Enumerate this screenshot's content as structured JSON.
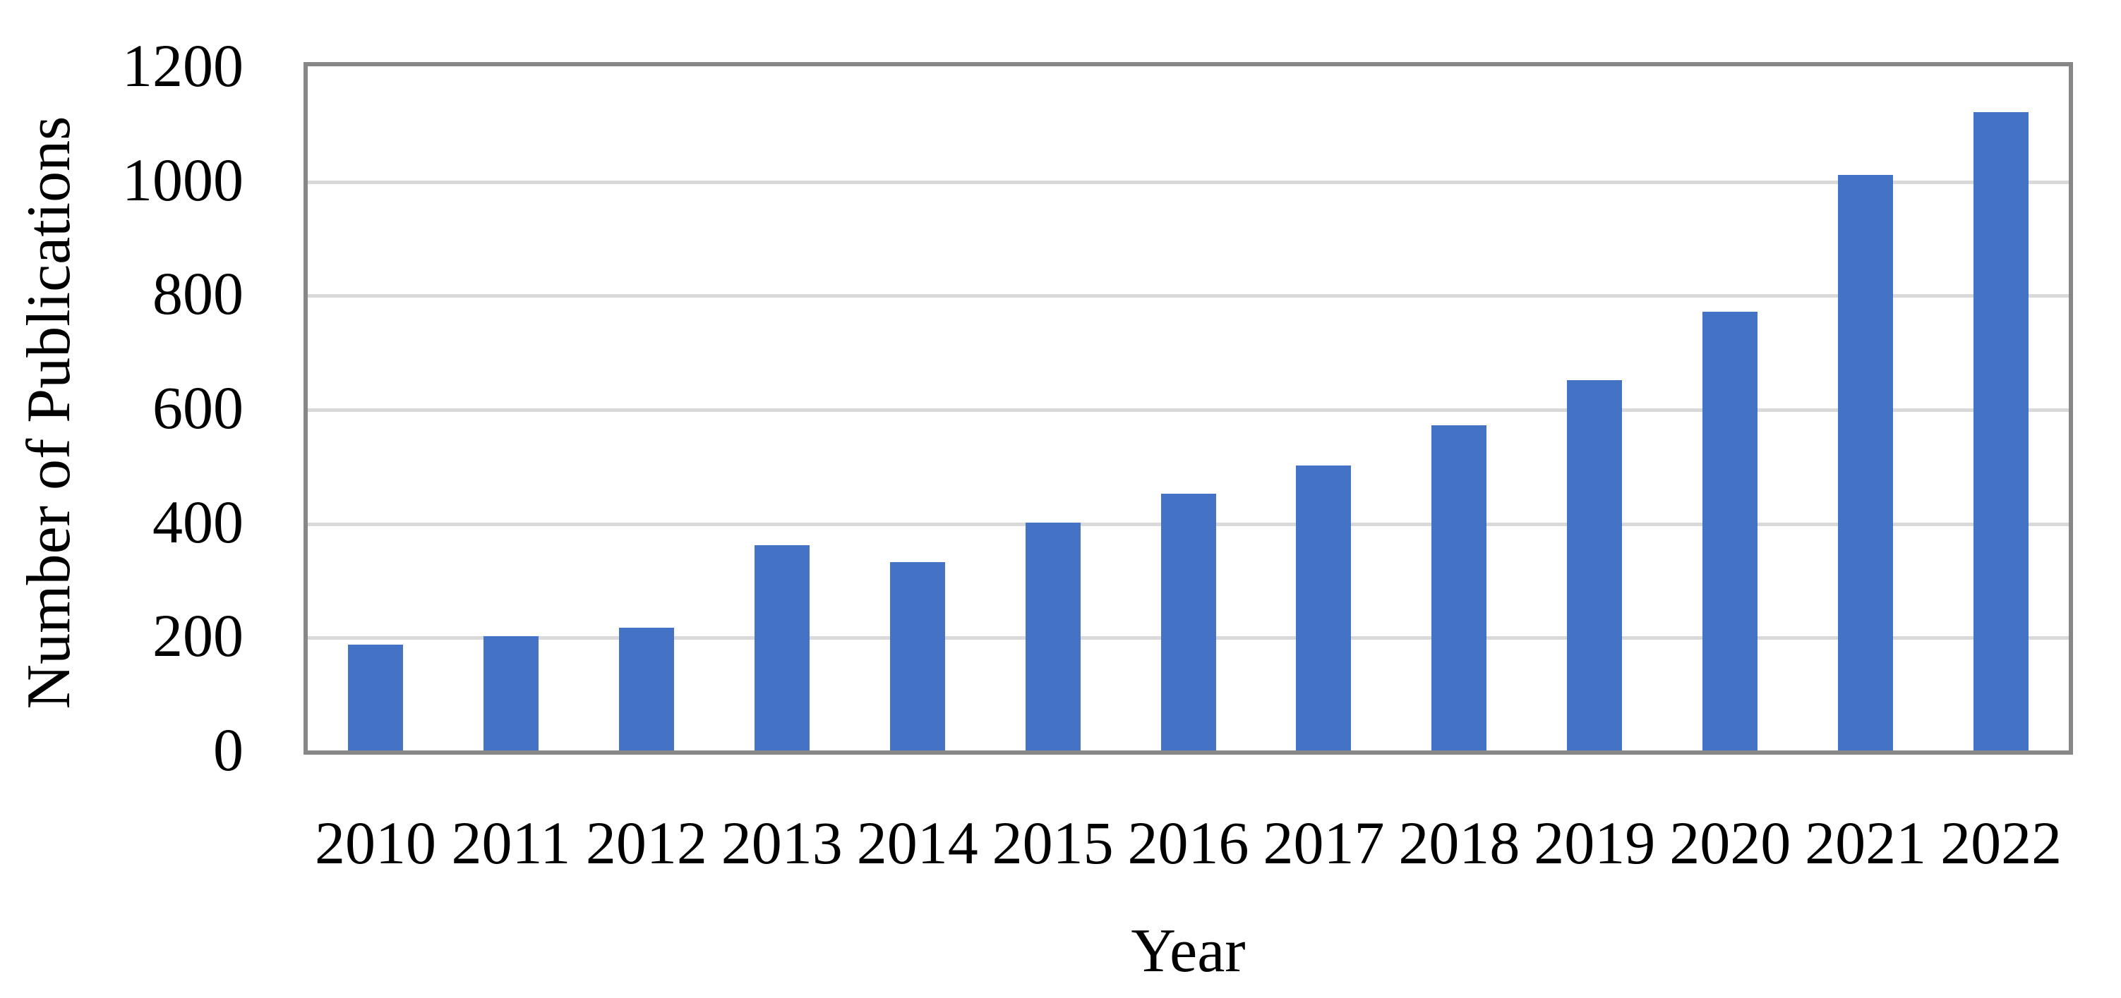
{
  "chart_data": {
    "type": "bar",
    "title": "",
    "categories": [
      "2010",
      "2011",
      "2012",
      "2013",
      "2014",
      "2015",
      "2016",
      "2017",
      "2018",
      "2019",
      "2020",
      "2021",
      "2022"
    ],
    "values": [
      185,
      200,
      215,
      360,
      330,
      400,
      450,
      500,
      570,
      650,
      770,
      1010,
      1120
    ],
    "xlabel": "Year",
    "ylabel": "Number of Publications",
    "ylim": [
      0,
      1200
    ],
    "yticks": [
      0,
      200,
      400,
      600,
      800,
      1000,
      1200
    ],
    "grid": "horizontal",
    "legend": "none",
    "bar_color": "#4472C4",
    "gridline_color": "#D9D9D9",
    "axis_border_color": "#878787",
    "text_color": "#000000",
    "background_color": "#FFFFFF"
  }
}
